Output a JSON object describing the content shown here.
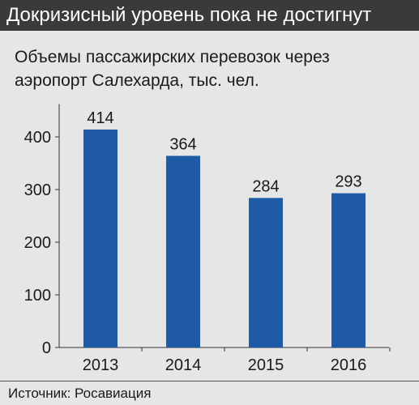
{
  "header": {
    "title": "Докризисный уровень пока не достигнут"
  },
  "source": "Источник: Росавиация",
  "colors": {
    "bar": "#1f5aa6",
    "background": "#e6e6e6",
    "header": "#3a3a3a"
  },
  "chart_data": {
    "type": "bar",
    "title": "Объемы пассажирских перевозок через аэропорт Салехарда, тыс. чел.",
    "xlabel": "",
    "ylabel": "",
    "categories": [
      "2013",
      "2014",
      "2015",
      "2016"
    ],
    "values": [
      414,
      364,
      284,
      293
    ],
    "data_labels": [
      "414",
      "364",
      "284",
      "293"
    ],
    "yticks": [
      0,
      100,
      200,
      300,
      400
    ],
    "ylim": [
      0,
      450
    ],
    "grid": false,
    "legend": "none"
  }
}
